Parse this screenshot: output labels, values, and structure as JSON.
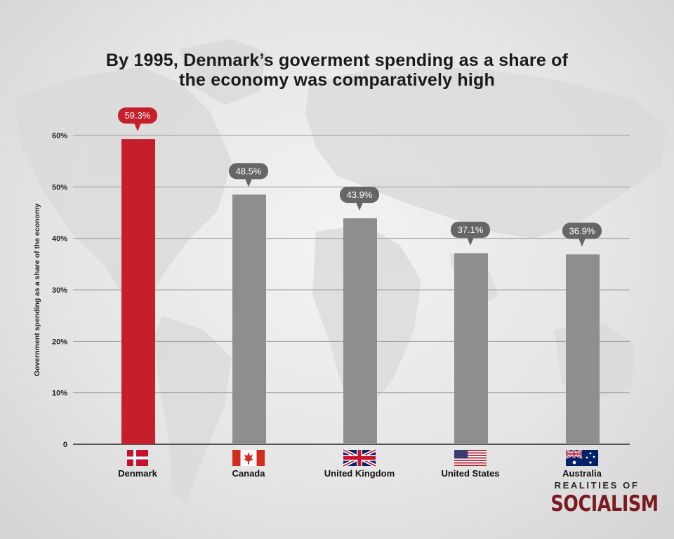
{
  "colors": {
    "highlight": "#c61f2c",
    "bar": "#8e8e8e",
    "callout_gray": "#666666",
    "callout_red": "#c61f2c",
    "grid": "#9a9a9a",
    "axis": "#555555",
    "brand": "#7a1a20"
  },
  "title_lines": [
    "By 1995, Denmark’s goverment spending as a share of",
    "the economy was comparatively high"
  ],
  "branding": {
    "top": "REALITIES OF",
    "main": "SOCIALISM"
  },
  "chart_data": {
    "type": "bar",
    "title": "By 1995, Denmark’s goverment spending as a share of the economy was comparatively high",
    "ylabel": "Government spending as a share of the economy",
    "xlabel": "",
    "ylim": [
      0,
      60
    ],
    "yticks": [
      {
        "value": 0,
        "label": "0"
      },
      {
        "value": 10,
        "label": "10%"
      },
      {
        "value": 20,
        "label": "20%"
      },
      {
        "value": 30,
        "label": "30%"
      },
      {
        "value": 40,
        "label": "40%"
      },
      {
        "value": 50,
        "label": "50%"
      },
      {
        "value": 60,
        "label": "60%"
      }
    ],
    "grid": true,
    "categories": [
      "Denmark",
      "Canada",
      "United Kingdom",
      "United States",
      "Australia"
    ],
    "values": [
      59.3,
      48.5,
      43.9,
      37.1,
      36.9
    ],
    "value_labels": [
      "59.3%",
      "48.5%",
      "43.9%",
      "37.1%",
      "36.9%"
    ],
    "flags": [
      "denmark-flag-icon",
      "canada-flag-icon",
      "uk-flag-icon",
      "us-flag-icon",
      "australia-flag-icon"
    ],
    "highlight_index": 0
  }
}
